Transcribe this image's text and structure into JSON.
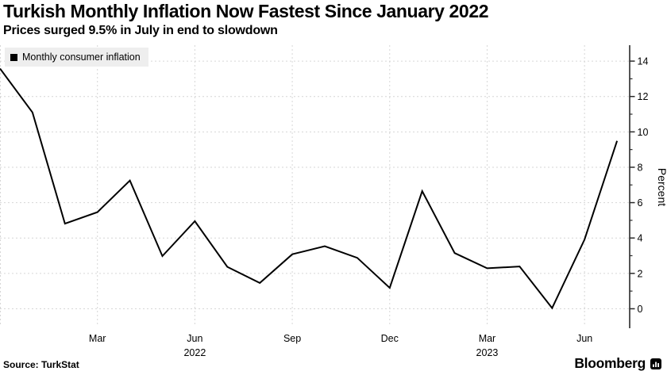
{
  "header": {
    "title": "Turkish Monthly Inflation Now Fastest Since January 2022",
    "subtitle": "Prices surged 9.5% in July in end to slowdown"
  },
  "legend": {
    "label": "Monthly consumer inflation",
    "swatch_color": "#000000"
  },
  "chart_data": {
    "type": "line",
    "title": "Turkish Monthly Inflation Now Fastest Since January 2022",
    "subtitle": "Prices surged 9.5% in July in end to slowdown",
    "xlabel": "",
    "ylabel": "Percent",
    "ylim": [
      -1.1,
      14.9
    ],
    "grid": true,
    "legend_position": "top-left",
    "x": [
      "Dec 2021",
      "Jan 2022",
      "Feb 2022",
      "Mar 2022",
      "Apr 2022",
      "May 2022",
      "Jun 2022",
      "Jul 2022",
      "Aug 2022",
      "Sep 2022",
      "Oct 2022",
      "Nov 2022",
      "Dec 2022",
      "Jan 2023",
      "Feb 2023",
      "Mar 2023",
      "Apr 2023",
      "May 2023",
      "Jun 2023",
      "Jul 2023"
    ],
    "series": [
      {
        "name": "Monthly consumer inflation",
        "color": "#000000",
        "values": [
          13.58,
          11.1,
          4.81,
          5.46,
          7.25,
          2.98,
          4.95,
          2.37,
          1.46,
          3.08,
          3.54,
          2.88,
          1.18,
          6.65,
          3.15,
          2.29,
          2.39,
          0.04,
          3.92,
          9.49
        ]
      }
    ],
    "x_ticks": [
      {
        "index": 3,
        "label": "Mar"
      },
      {
        "index": 6,
        "label": "Jun",
        "year": "2022"
      },
      {
        "index": 9,
        "label": "Sep"
      },
      {
        "index": 12,
        "label": "Dec"
      },
      {
        "index": 15,
        "label": "Mar",
        "year": "2023"
      },
      {
        "index": 18,
        "label": "Jun"
      }
    ],
    "x_gridline_indices": [
      0,
      3,
      6,
      9,
      12,
      15,
      18
    ],
    "y_major_ticks": [
      0,
      2,
      4,
      6,
      8,
      10,
      12,
      14
    ],
    "y_minor_ticks": [
      1,
      3,
      5,
      7,
      9,
      11,
      13
    ],
    "colors": {
      "line": "#000000",
      "grid": "#d6d6d6",
      "axis": "#2a2a2a",
      "tick_label": "#000000",
      "legend_bg": "#eeeeee"
    }
  },
  "footer": {
    "source": "Source: TurkStat",
    "brand": "Bloomberg"
  }
}
